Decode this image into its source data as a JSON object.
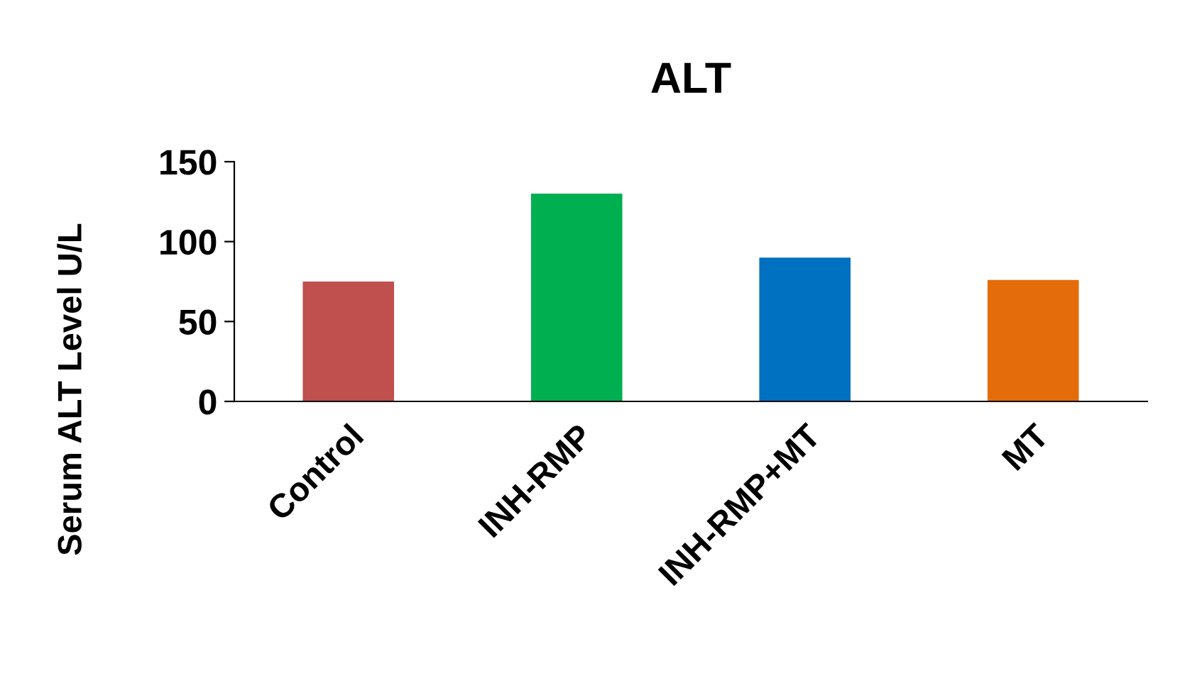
{
  "chart_data": {
    "type": "bar",
    "title": "ALT",
    "ylabel": "Serum ALT Level U/L",
    "categories": [
      "Control",
      "INH-RMP",
      "INH-RMP+MT",
      "MT"
    ],
    "values": [
      75,
      130,
      90,
      76
    ],
    "colors": [
      "#c0504d",
      "#00b050",
      "#0070c0",
      "#e46c0a"
    ],
    "ylim": [
      0,
      150
    ],
    "yticks": [
      0,
      50,
      100,
      150
    ],
    "grid": false,
    "legend": false
  }
}
